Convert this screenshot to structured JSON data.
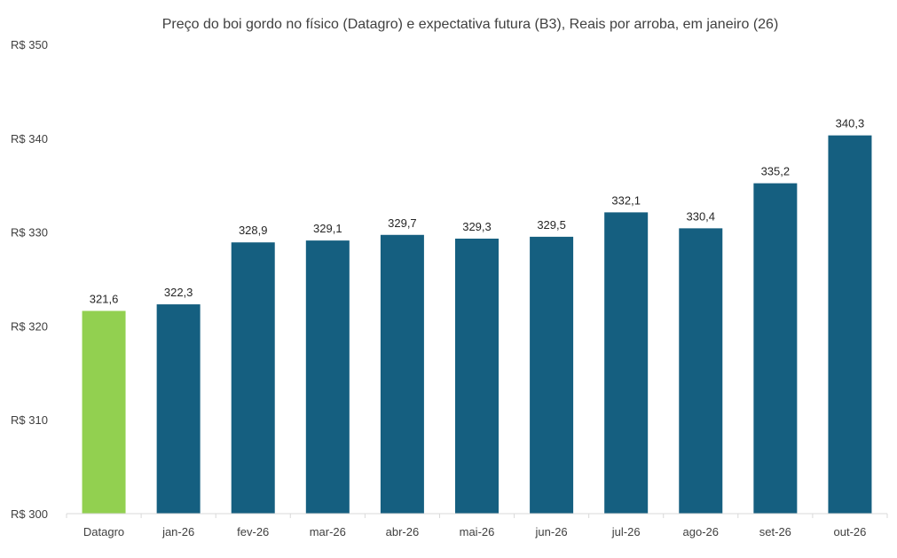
{
  "chart_data": {
    "type": "bar",
    "title": "Preço do boi gordo no físico (Datagro)  e expectativa futura (B3), Reais por arroba, em janeiro (26)",
    "xlabel": "",
    "ylabel": "",
    "categories": [
      "Datagro",
      "jan-26",
      "fev-26",
      "mar-26",
      "abr-26",
      "mai-26",
      "jun-26",
      "jul-26",
      "ago-26",
      "set-26",
      "out-26"
    ],
    "values": [
      321.6,
      322.3,
      328.9,
      329.1,
      329.7,
      329.3,
      329.5,
      332.1,
      330.4,
      335.2,
      340.3
    ],
    "value_labels": [
      "321,6",
      "322,3",
      "328,9",
      "329,1",
      "329,7",
      "329,3",
      "329,5",
      "332,1",
      "330,4",
      "335,2",
      "340,3"
    ],
    "ylim": [
      300,
      350
    ],
    "yticks": [
      300,
      310,
      320,
      330,
      340,
      350
    ],
    "ytick_labels": [
      "R$ 300",
      "R$ 310",
      "R$ 320",
      "R$ 330",
      "R$ 340",
      "R$ 350"
    ],
    "grid": false,
    "colors": {
      "highlight": "#92d050",
      "bar": "#155f80",
      "axis": "#d9d9d9"
    },
    "highlight_index": 0
  }
}
